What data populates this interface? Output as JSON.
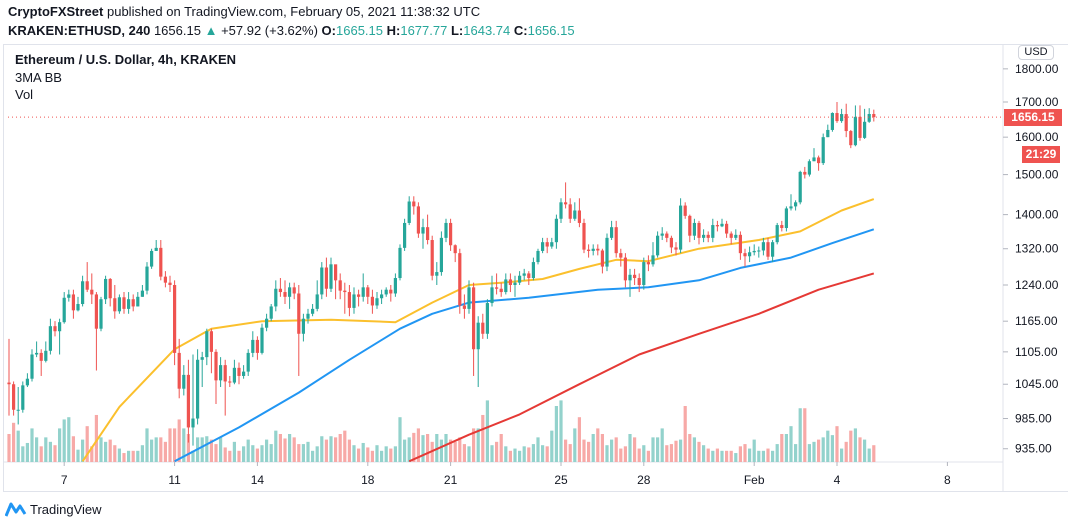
{
  "header": {
    "publisher": "CryptoFXStreet",
    "published_text": "published on TradingView.com, February 05, 2021 11:38:32 UTC",
    "symbol": "KRAKEN:ETHUSD, 240",
    "last": "1656.15",
    "change": "+57.92 (+3.62%)",
    "o_label": "O:",
    "o": "1665.15",
    "h_label": "H:",
    "h": "1677.77",
    "l_label": "L:",
    "l": "1643.74",
    "c_label": "C:",
    "c": "1656.15",
    "up_icon": "triangle-up-icon"
  },
  "legend": {
    "title": "Ethereum / U.S. Dollar, 4h, KRAKEN",
    "indicator": "3MA BB",
    "volume": "Vol"
  },
  "price_axis": {
    "currency": "USD",
    "current_price": "1656.15",
    "countdown": "21:29"
  },
  "footer": {
    "brand": "TradingView"
  },
  "colors": {
    "up": "#26a69a",
    "down": "#ef5350",
    "vol_up": "#93d2cc",
    "vol_down": "#f7a9a7",
    "ma_fast": "#fbc02d",
    "ma_mid": "#2196f3",
    "ma_slow": "#e53935"
  },
  "chart_data": {
    "type": "candlestick",
    "interval": "4h",
    "y_scale": "log",
    "ylim": [
      915,
      1860
    ],
    "grid": false,
    "y_ticks": [
      "1800.00",
      "1700.00",
      "1600.00",
      "1500.00",
      "1400.00",
      "1320.00",
      "1240.00",
      "1165.00",
      "1105.00",
      "1045.00",
      "985.00",
      "935.00"
    ],
    "x_ticks": [
      {
        "label": "7",
        "date": "2021-01-07"
      },
      {
        "label": "11",
        "date": "2021-01-11"
      },
      {
        "label": "14",
        "date": "2021-01-14"
      },
      {
        "label": "18",
        "date": "2021-01-18"
      },
      {
        "label": "21",
        "date": "2021-01-21"
      },
      {
        "label": "25",
        "date": "2021-01-25"
      },
      {
        "label": "28",
        "date": "2021-01-28"
      },
      {
        "label": "Feb",
        "date": "2021-02-01"
      },
      {
        "label": "4",
        "date": "2021-02-04"
      },
      {
        "label": "8",
        "date": "2021-02-08"
      }
    ],
    "first_open": 1048,
    "close": [
      1045,
      1000,
      1000,
      1043,
      1055,
      1100,
      1103,
      1088,
      1107,
      1155,
      1145,
      1163,
      1213,
      1220,
      1187,
      1200,
      1248,
      1230,
      1220,
      1150,
      1210,
      1253,
      1212,
      1185,
      1214,
      1190,
      1210,
      1195,
      1215,
      1228,
      1280,
      1315,
      1322,
      1258,
      1245,
      1240,
      1103,
      1037,
      1062,
      970,
      985,
      1090,
      1095,
      1145,
      1105,
      1052,
      1080,
      1050,
      1048,
      1075,
      1060,
      1068,
      1103,
      1128,
      1103,
      1152,
      1170,
      1195,
      1232,
      1225,
      1215,
      1235,
      1222,
      1140,
      1170,
      1180,
      1190,
      1220,
      1278,
      1232,
      1285,
      1250,
      1228,
      1225,
      1192,
      1220,
      1215,
      1235,
      1215,
      1197,
      1212,
      1220,
      1230,
      1222,
      1255,
      1322,
      1380,
      1432,
      1420,
      1355,
      1370,
      1340,
      1260,
      1268,
      1345,
      1380,
      1328,
      1310,
      1197,
      1190,
      1235,
      1110,
      1162,
      1140,
      1202,
      1235,
      1232,
      1225,
      1252,
      1240,
      1245,
      1260,
      1265,
      1255,
      1290,
      1315,
      1335,
      1325,
      1335,
      1390,
      1430,
      1425,
      1390,
      1410,
      1380,
      1318,
      1315,
      1320,
      1316,
      1280,
      1345,
      1370,
      1310,
      1300,
      1250,
      1262,
      1255,
      1240,
      1290,
      1285,
      1305,
      1350,
      1355,
      1345,
      1323,
      1318,
      1422,
      1397,
      1350,
      1380,
      1345,
      1352,
      1345,
      1375,
      1372,
      1378,
      1355,
      1345,
      1352,
      1310,
      1303,
      1312,
      1315,
      1316,
      1335,
      1302,
      1335,
      1375,
      1368,
      1415,
      1420,
      1430,
      1507,
      1500,
      1535,
      1545,
      1530,
      1600,
      1620,
      1668,
      1645,
      1665,
      1617,
      1578,
      1657,
      1598,
      1643,
      1665.15,
      1656.15
    ],
    "high": [
      1130,
      1050,
      1040,
      1050,
      1065,
      1110,
      1125,
      1110,
      1125,
      1170,
      1165,
      1170,
      1225,
      1230,
      1230,
      1215,
      1260,
      1290,
      1265,
      1225,
      1215,
      1260,
      1255,
      1240,
      1220,
      1225,
      1225,
      1220,
      1225,
      1240,
      1290,
      1320,
      1340,
      1340,
      1270,
      1260,
      1250,
      1130,
      1080,
      1090,
      1100,
      1110,
      1105,
      1150,
      1150,
      1110,
      1095,
      1090,
      1060,
      1090,
      1085,
      1080,
      1110,
      1145,
      1135,
      1160,
      1180,
      1200,
      1250,
      1255,
      1250,
      1245,
      1245,
      1240,
      1180,
      1190,
      1200,
      1250,
      1290,
      1300,
      1300,
      1280,
      1265,
      1245,
      1240,
      1235,
      1230,
      1265,
      1240,
      1230,
      1225,
      1230,
      1235,
      1240,
      1265,
      1330,
      1390,
      1445,
      1445,
      1430,
      1390,
      1400,
      1350,
      1290,
      1360,
      1390,
      1390,
      1330,
      1320,
      1220,
      1250,
      1245,
      1175,
      1180,
      1210,
      1260,
      1265,
      1245,
      1265,
      1265,
      1260,
      1270,
      1275,
      1270,
      1300,
      1320,
      1345,
      1345,
      1345,
      1400,
      1440,
      1480,
      1440,
      1430,
      1440,
      1390,
      1330,
      1330,
      1330,
      1320,
      1355,
      1385,
      1385,
      1320,
      1310,
      1275,
      1275,
      1265,
      1300,
      1305,
      1335,
      1360,
      1370,
      1360,
      1350,
      1335,
      1440,
      1430,
      1400,
      1390,
      1385,
      1365,
      1360,
      1390,
      1385,
      1390,
      1385,
      1360,
      1365,
      1360,
      1320,
      1325,
      1330,
      1325,
      1345,
      1345,
      1340,
      1380,
      1385,
      1420,
      1450,
      1435,
      1510,
      1520,
      1540,
      1570,
      1550,
      1610,
      1635,
      1670,
      1700,
      1680,
      1695,
      1620,
      1690,
      1690,
      1680,
      1682,
      1677.77
    ],
    "low": [
      990,
      990,
      975,
      995,
      1040,
      1050,
      1095,
      1060,
      1085,
      1100,
      1135,
      1100,
      1160,
      1205,
      1170,
      1185,
      1195,
      1225,
      1200,
      1070,
      1145,
      1200,
      1195,
      1170,
      1180,
      1180,
      1180,
      1185,
      1195,
      1215,
      1220,
      1275,
      1315,
      1250,
      1235,
      1225,
      1080,
      1020,
      1025,
      945,
      940,
      975,
      1040,
      1080,
      1065,
      1010,
      1040,
      990,
      1040,
      1045,
      1045,
      1055,
      1060,
      1095,
      1090,
      1100,
      1145,
      1165,
      1185,
      1215,
      1200,
      1190,
      1210,
      1060,
      1125,
      1160,
      1175,
      1185,
      1210,
      1215,
      1225,
      1210,
      1210,
      1180,
      1175,
      1180,
      1195,
      1205,
      1200,
      1180,
      1190,
      1200,
      1215,
      1205,
      1215,
      1250,
      1315,
      1375,
      1400,
      1345,
      1320,
      1330,
      1250,
      1240,
      1260,
      1335,
      1315,
      1290,
      1180,
      1170,
      1180,
      1060,
      1040,
      1130,
      1130,
      1195,
      1220,
      1215,
      1220,
      1225,
      1215,
      1240,
      1250,
      1240,
      1250,
      1285,
      1310,
      1310,
      1320,
      1320,
      1380,
      1415,
      1380,
      1385,
      1370,
      1310,
      1300,
      1305,
      1305,
      1265,
      1270,
      1340,
      1300,
      1280,
      1235,
      1215,
      1240,
      1225,
      1230,
      1270,
      1280,
      1300,
      1340,
      1335,
      1310,
      1305,
      1310,
      1390,
      1335,
      1340,
      1330,
      1335,
      1335,
      1335,
      1360,
      1370,
      1345,
      1330,
      1340,
      1295,
      1280,
      1290,
      1305,
      1300,
      1305,
      1295,
      1290,
      1330,
      1360,
      1360,
      1410,
      1410,
      1425,
      1490,
      1495,
      1535,
      1510,
      1525,
      1600,
      1615,
      1640,
      1640,
      1600,
      1570,
      1575,
      1590,
      1595,
      1640,
      1643.74
    ],
    "volume_relative": [
      25,
      35,
      28,
      14,
      17,
      30,
      22,
      14,
      22,
      18,
      15,
      30,
      38,
      40,
      23,
      11,
      20,
      32,
      14,
      42,
      22,
      18,
      20,
      15,
      12,
      8,
      10,
      10,
      10,
      15,
      30,
      20,
      22,
      22,
      18,
      30,
      30,
      38,
      30,
      25,
      10,
      22,
      22,
      23,
      20,
      16,
      22,
      13,
      10,
      18,
      10,
      14,
      20,
      15,
      12,
      15,
      20,
      16,
      28,
      25,
      21,
      25,
      22,
      16,
      16,
      18,
      10,
      14,
      23,
      20,
      23,
      22,
      25,
      28,
      20,
      15,
      12,
      17,
      13,
      10,
      15,
      10,
      14,
      12,
      14,
      40,
      20,
      22,
      26,
      30,
      24,
      25,
      18,
      25,
      20,
      25,
      20,
      18,
      22,
      16,
      14,
      30,
      30,
      42,
      55,
      15,
      18,
      25,
      14,
      10,
      12,
      10,
      14,
      13,
      16,
      22,
      15,
      14,
      28,
      50,
      55,
      20,
      16,
      30,
      40,
      20,
      18,
      25,
      30,
      25,
      15,
      20,
      22,
      12,
      14,
      25,
      22,
      12,
      15,
      10,
      22,
      22,
      30,
      15,
      16,
      19,
      20,
      50,
      25,
      22,
      18,
      15,
      12,
      10,
      12,
      10,
      10,
      10,
      8,
      14,
      16,
      12,
      20,
      10,
      10,
      12,
      10,
      16,
      25,
      25,
      32,
      16,
      48,
      48,
      16,
      18,
      20,
      22,
      28,
      24,
      32,
      12,
      18,
      28,
      30,
      22,
      20,
      12,
      15
    ],
    "moving_averages": [
      {
        "color_key": "ma_fast",
        "points": [
          [
            "2021-01-07 16:00",
            915
          ],
          [
            "2021-01-09 00:00",
            1005
          ],
          [
            "2021-01-11 00:00",
            1110
          ],
          [
            "2021-01-12 08:00",
            1150
          ],
          [
            "2021-01-14 04:00",
            1165
          ],
          [
            "2021-01-16 16:00",
            1168
          ],
          [
            "2021-01-19 00:00",
            1163
          ],
          [
            "2021-01-20 08:00",
            1203
          ],
          [
            "2021-01-21 16:00",
            1240
          ],
          [
            "2021-01-22 20:00",
            1245
          ],
          [
            "2021-01-24 08:00",
            1253
          ],
          [
            "2021-01-25 16:00",
            1275
          ],
          [
            "2021-01-27 00:00",
            1295
          ],
          [
            "2021-01-28 04:00",
            1292
          ],
          [
            "2021-01-30 00:00",
            1320
          ],
          [
            "2021-02-01 04:00",
            1340
          ],
          [
            "2021-02-02 16:00",
            1360
          ],
          [
            "2021-02-04 04:00",
            1410
          ],
          [
            "2021-02-05 08:00",
            1438
          ]
        ]
      },
      {
        "color_key": "ma_mid",
        "points": [
          [
            "2021-01-11 00:00",
            915
          ],
          [
            "2021-01-13 08:00",
            970
          ],
          [
            "2021-01-15 12:00",
            1030
          ],
          [
            "2021-01-17 08:00",
            1090
          ],
          [
            "2021-01-19 04:00",
            1150
          ],
          [
            "2021-01-20 08:00",
            1180
          ],
          [
            "2021-01-21 16:00",
            1203
          ],
          [
            "2021-01-23 20:00",
            1213
          ],
          [
            "2021-01-26 08:00",
            1230
          ],
          [
            "2021-01-28 04:00",
            1235
          ],
          [
            "2021-01-30 00:00",
            1250
          ],
          [
            "2021-01-31 12:00",
            1277
          ],
          [
            "2021-02-02 08:00",
            1300
          ],
          [
            "2021-02-03 20:00",
            1333
          ],
          [
            "2021-02-05 08:00",
            1365
          ]
        ]
      },
      {
        "color_key": "ma_slow",
        "points": [
          [
            "2021-01-19 12:00",
            915
          ],
          [
            "2021-01-21 16:00",
            958
          ],
          [
            "2021-01-23 12:00",
            992
          ],
          [
            "2021-01-25 16:00",
            1045
          ],
          [
            "2021-01-27 20:00",
            1100
          ],
          [
            "2021-01-30 00:00",
            1140
          ],
          [
            "2021-02-01 04:00",
            1180
          ],
          [
            "2021-02-03 08:00",
            1230
          ],
          [
            "2021-02-05 08:00",
            1265
          ]
        ]
      }
    ]
  }
}
